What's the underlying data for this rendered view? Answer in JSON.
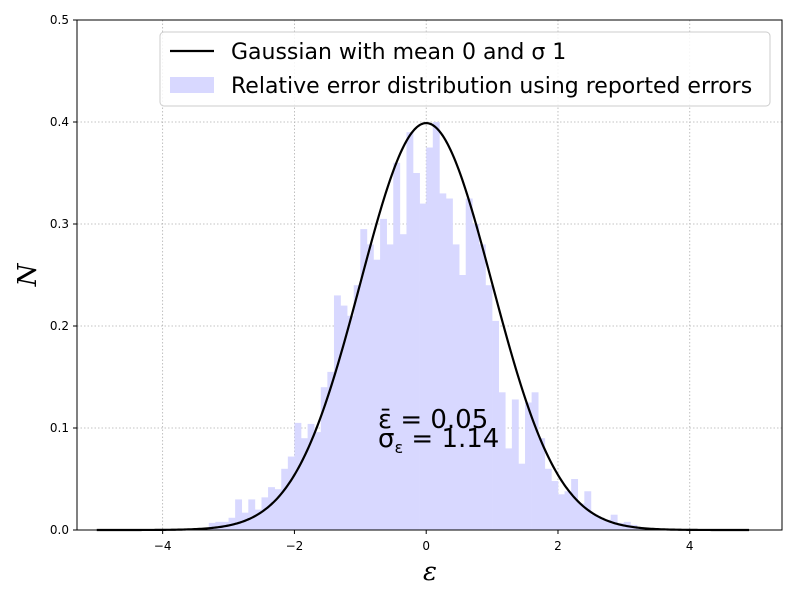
{
  "chart_data": {
    "type": "bar",
    "xlabel": "ε",
    "ylabel": "N",
    "xlim": [
      -5.3,
      5.4
    ],
    "ylim": [
      0,
      0.5
    ],
    "grid": true,
    "legend_position": "top-right",
    "x_ticks": [
      -4,
      -2,
      0,
      2,
      4
    ],
    "x_tick_labels": [
      "−4",
      "−2",
      "0",
      "2",
      "4"
    ],
    "y_ticks": [
      0,
      0.1,
      0.2,
      0.3,
      0.4,
      0.5
    ],
    "y_tick_labels": [
      "0.0",
      "0.1",
      "0.2",
      "0.3",
      "0.4",
      "0.5"
    ],
    "series": [
      {
        "name": "Gaussian with mean 0 and σ 1",
        "kind": "line",
        "color": "#000000",
        "mean": 0,
        "sigma": 1,
        "x_range": [
          -5,
          4.9
        ]
      },
      {
        "name": "Relative error distribution using reported errors",
        "kind": "histogram",
        "color": "#d8d8ff",
        "bin_width": 0.1,
        "bin_starts": [
          -3.3,
          -3.2,
          -3.1,
          -3.0,
          -2.9,
          -2.8,
          -2.7,
          -2.6,
          -2.5,
          -2.4,
          -2.3,
          -2.2,
          -2.1,
          -2.0,
          -1.9,
          -1.8,
          -1.7,
          -1.6,
          -1.5,
          -1.4,
          -1.3,
          -1.2,
          -1.1,
          -1.0,
          -0.9,
          -0.8,
          -0.7,
          -0.6,
          -0.5,
          -0.4,
          -0.3,
          -0.2,
          -0.1,
          0.0,
          0.1,
          0.2,
          0.3,
          0.4,
          0.5,
          0.6,
          0.7,
          0.8,
          0.9,
          1.0,
          1.1,
          1.2,
          1.3,
          1.4,
          1.5,
          1.6,
          1.7,
          1.8,
          1.9,
          2.0,
          2.1,
          2.2,
          2.3,
          2.4,
          2.5,
          2.6,
          2.7,
          2.8,
          2.9,
          3.0,
          3.1,
          3.2,
          3.3,
          3.4
        ],
        "values": [
          0.007,
          0.008,
          0.008,
          0.012,
          0.03,
          0.017,
          0.03,
          0.02,
          0.032,
          0.042,
          0.04,
          0.06,
          0.072,
          0.105,
          0.09,
          0.104,
          0.096,
          0.14,
          0.155,
          0.23,
          0.22,
          0.21,
          0.24,
          0.295,
          0.28,
          0.265,
          0.305,
          0.28,
          0.36,
          0.29,
          0.39,
          0.35,
          0.32,
          0.375,
          0.4,
          0.33,
          0.325,
          0.28,
          0.25,
          0.325,
          0.3,
          0.28,
          0.24,
          0.205,
          0.135,
          0.08,
          0.128,
          0.065,
          0.125,
          0.135,
          0.09,
          0.06,
          0.048,
          0.035,
          0.038,
          0.05,
          0.026,
          0.038,
          0.015,
          0.012,
          0.01,
          0.015,
          0.007,
          0.008,
          0.005,
          0.003,
          0.002,
          0.001
        ]
      }
    ],
    "annotations": [
      {
        "text": "ε̄ = 0.05",
        "x": -0.85,
        "y": 0.1
      },
      {
        "text": "σ",
        "subscript": "ε",
        "text_after": " = 1.14",
        "x": -0.85,
        "y": 0.08
      }
    ]
  }
}
